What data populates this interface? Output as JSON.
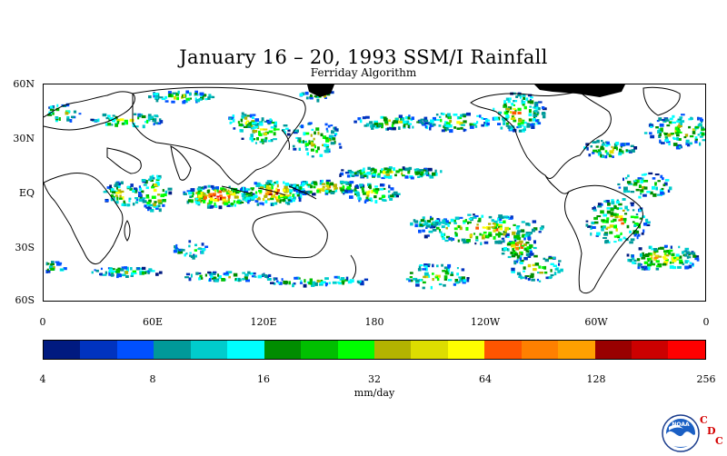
{
  "title": "January 16 – 20, 1993 SSM/I Rainfall",
  "subtitle": "Ferriday Algorithm",
  "map": {
    "type": "global-precipitation-map",
    "y_labels": [
      "60N",
      "30N",
      "EQ",
      "30S",
      "60S"
    ],
    "x_labels": [
      "0",
      "60E",
      "120E",
      "180",
      "120W",
      "60W",
      "0"
    ],
    "land_outline_color": "#000000",
    "sea_ice_color": "#000000"
  },
  "colorbar": {
    "colors": [
      "#001a80",
      "#0033bf",
      "#0050ff",
      "#009999",
      "#00cccc",
      "#00ffff",
      "#008c00",
      "#00bf00",
      "#00ff00",
      "#b3b300",
      "#dddd00",
      "#ffff00",
      "#ff5500",
      "#ff8000",
      "#ffa000",
      "#990000",
      "#cc0000",
      "#ff0000"
    ],
    "tick_labels": [
      "4",
      "8",
      "16",
      "32",
      "64",
      "128",
      "256"
    ],
    "unit": "mm/day"
  },
  "logo": {
    "icon": "noaa-logo-icon",
    "emblem_text": "NOAA",
    "letters": [
      "C",
      "D",
      "C"
    ],
    "letter_color": "#d40000"
  }
}
